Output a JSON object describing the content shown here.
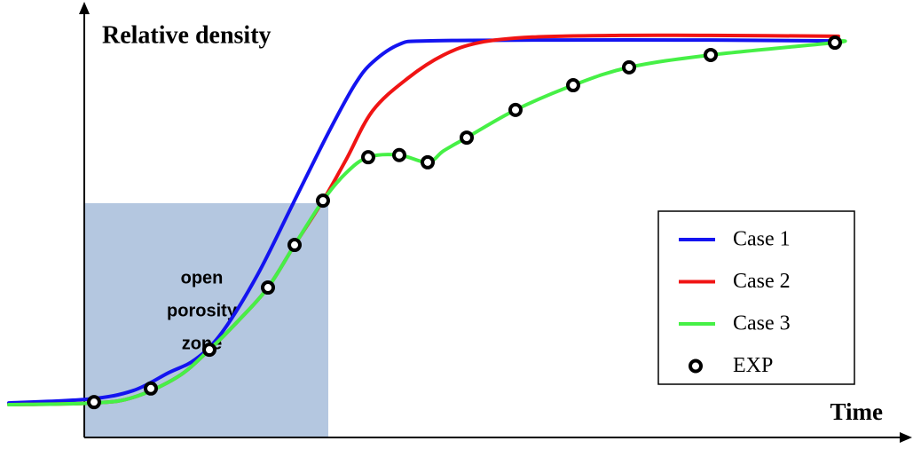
{
  "chart_data": {
    "type": "line",
    "y_label": "Relative density",
    "x_label": "Time",
    "xlim": [
      0,
      100
    ],
    "ylim": [
      0,
      100
    ],
    "legend": "right",
    "shaded_region": {
      "x": [
        8.5,
        36
      ],
      "y": [
        0,
        55
      ],
      "color": "#b4c7e0",
      "label": [
        "open",
        "porosity",
        "zone"
      ]
    },
    "series": [
      {
        "name": "Case 1",
        "color": "#1414f0",
        "style": "line",
        "x": [
          0,
          9,
          14,
          18,
          21,
          24,
          28,
          32,
          36,
          39,
          41,
          44,
          47,
          59,
          79,
          93.5
        ],
        "values": [
          8.1,
          9,
          11,
          15.2,
          18.3,
          24.6,
          38.1,
          54.8,
          71.5,
          82.9,
          88.1,
          92.3,
          93.1,
          93.3,
          93.3,
          93.1
        ]
      },
      {
        "name": "Case 2",
        "color": "#f01414",
        "style": "line",
        "x": [
          0,
          9.6,
          14,
          19,
          22.6,
          26,
          29.2,
          32.2,
          35.4,
          38,
          41,
          45,
          49,
          53,
          59,
          69,
          79,
          93.5
        ],
        "values": [
          7.7,
          8.1,
          9.4,
          14.2,
          20.6,
          27.7,
          35.2,
          45.2,
          55.6,
          65.2,
          76.7,
          84.4,
          89.8,
          92.7,
          94,
          94.4,
          94.4,
          94.2
        ]
      },
      {
        "name": "Case 3",
        "color": "#46f046",
        "style": "line",
        "x": [
          0,
          9.6,
          14,
          19,
          22.6,
          26,
          29.2,
          32.2,
          35.4,
          38,
          40.5,
          44,
          47.2,
          49,
          51.6,
          57.1,
          63.6,
          69.9,
          79.1,
          93.1,
          93.5
        ],
        "values": [
          7.7,
          8.1,
          9.4,
          14.2,
          20.6,
          27.7,
          35.2,
          45.2,
          55.6,
          62.1,
          65.8,
          66.3,
          64.6,
          67.3,
          70.4,
          76.9,
          82.7,
          86.9,
          89.8,
          92.7,
          93.1
        ]
      },
      {
        "name": "EXP",
        "color": "#000000",
        "style": "marker",
        "x": [
          9.6,
          16,
          22.6,
          29.2,
          32.2,
          35.4,
          40.5,
          44,
          47.2,
          51.6,
          57.1,
          63.6,
          69.9,
          79.1,
          93.1
        ],
        "values": [
          8.3,
          11.5,
          20.6,
          35.2,
          45.2,
          55.6,
          65.8,
          66.3,
          64.6,
          70.4,
          76.9,
          82.7,
          86.9,
          89.8,
          92.7
        ]
      }
    ]
  }
}
